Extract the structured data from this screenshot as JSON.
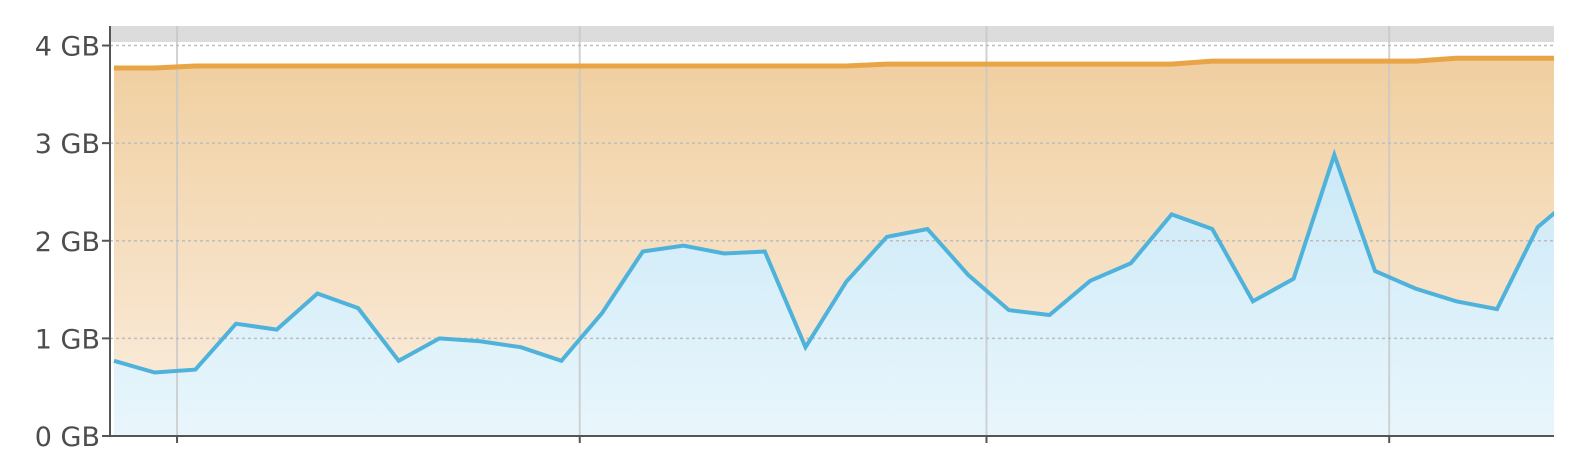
{
  "chart_data": {
    "type": "area",
    "ylim": [
      0,
      4.2
    ],
    "yticks": [
      {
        "value": 0,
        "label": "0 GB"
      },
      {
        "value": 1,
        "label": "1 GB"
      },
      {
        "value": 2,
        "label": "2 GB"
      },
      {
        "value": 3,
        "label": "3 GB"
      },
      {
        "value": 4,
        "label": "4 GB"
      }
    ],
    "x_count": 37,
    "x_major_ticks_at_index": [
      1.55,
      11.45,
      21.45,
      31.35
    ],
    "grid": true,
    "series": [
      {
        "role": "total",
        "color": "#e8a445",
        "fill_top": "#f0cfa0",
        "fill_bottom": "#fbeee0",
        "values": [
          3.77,
          3.77,
          3.79,
          3.79,
          3.79,
          3.79,
          3.79,
          3.79,
          3.79,
          3.79,
          3.79,
          3.79,
          3.79,
          3.79,
          3.79,
          3.79,
          3.79,
          3.79,
          3.79,
          3.81,
          3.81,
          3.81,
          3.81,
          3.81,
          3.81,
          3.81,
          3.81,
          3.84,
          3.84,
          3.84,
          3.84,
          3.84,
          3.84,
          3.87,
          3.87,
          3.87,
          3.87
        ]
      },
      {
        "role": "used",
        "color": "#4fb2da",
        "fill_top": "#cbe9f7",
        "fill_bottom": "#e9f6fc",
        "values": [
          0.77,
          0.65,
          0.68,
          1.15,
          1.09,
          1.46,
          1.31,
          0.77,
          1.0,
          0.97,
          0.91,
          0.77,
          1.26,
          1.89,
          1.95,
          1.87,
          1.89,
          0.91,
          1.58,
          2.04,
          2.12,
          1.65,
          1.29,
          1.24,
          1.59,
          1.77,
          2.27,
          2.12,
          1.38,
          1.61,
          2.88,
          1.69,
          1.51,
          1.38,
          1.3,
          2.14,
          2.49
        ]
      }
    ]
  }
}
